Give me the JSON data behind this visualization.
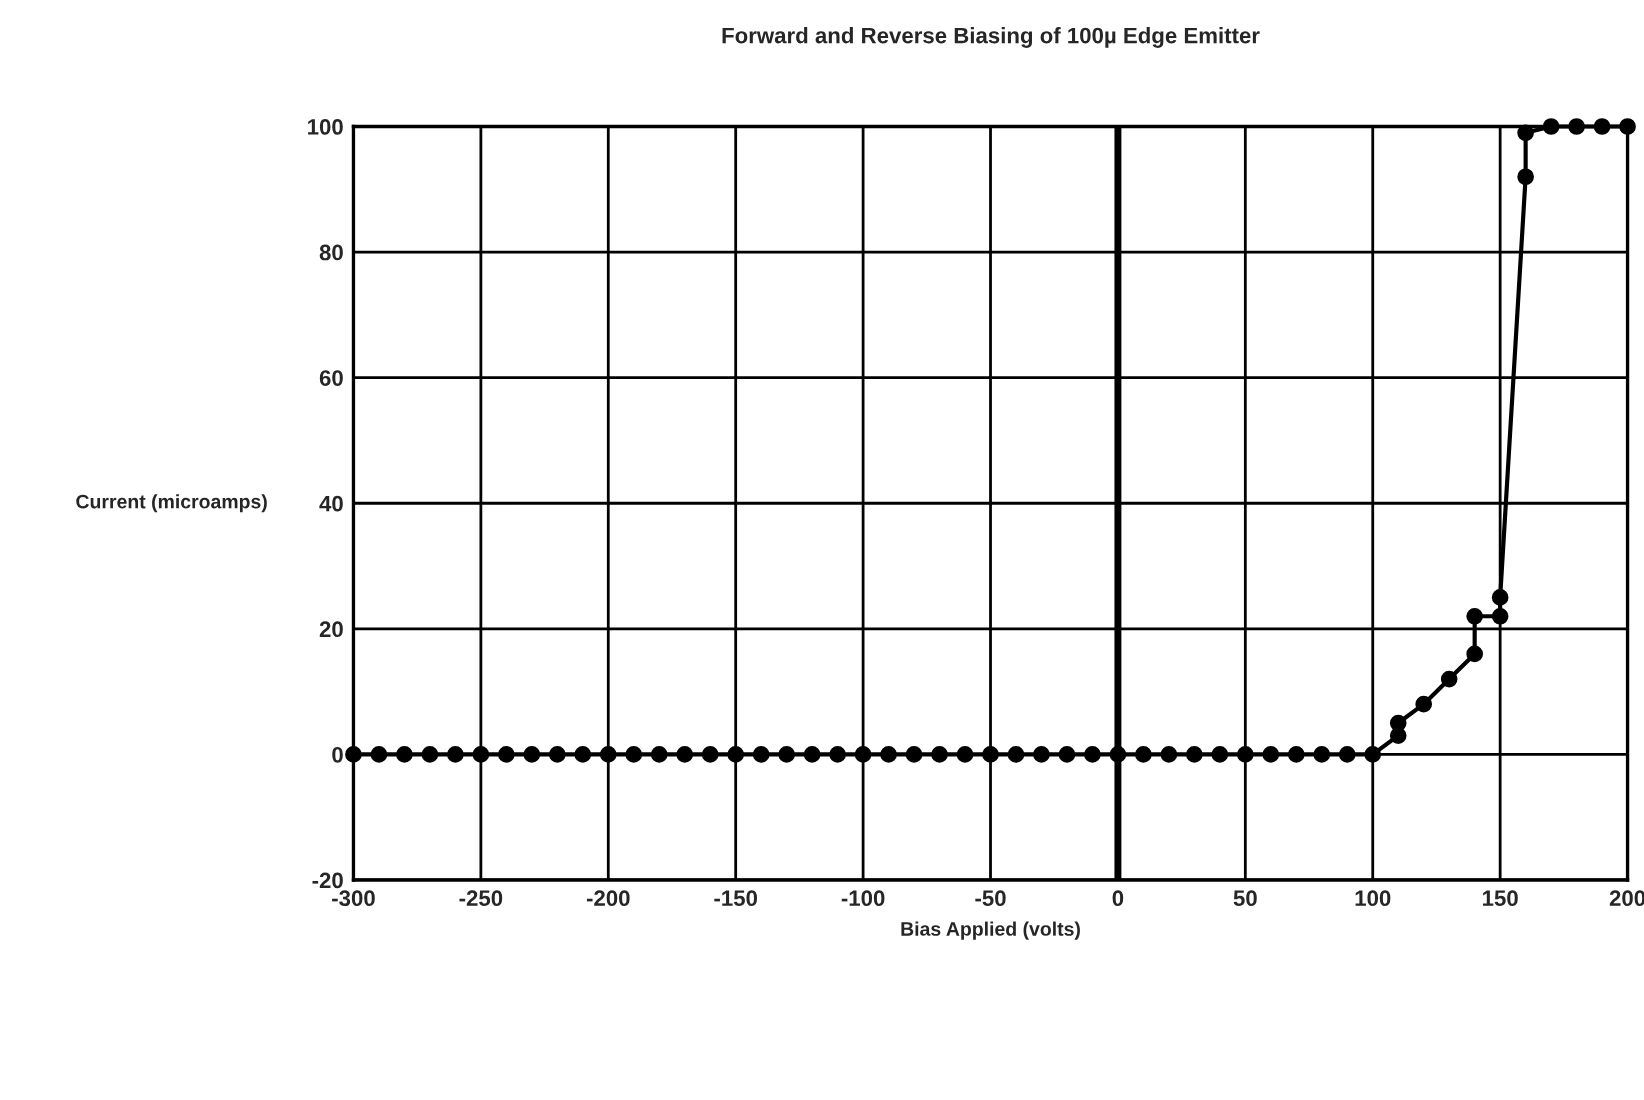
{
  "chart_data": {
    "type": "line",
    "title": "Forward and Reverse Biasing of 100µ Edge Emitter",
    "xlabel": "Bias Applied (volts)",
    "ylabel": "Current (microamps)",
    "series": [
      {
        "color": "#000000",
        "x": [
          -300,
          -290,
          -280,
          -270,
          -260,
          -250,
          -240,
          -230,
          -220,
          -210,
          -200,
          -190,
          -180,
          -170,
          -160,
          -150,
          -140,
          -130,
          -120,
          -110,
          -100,
          -90,
          -80,
          -70,
          -60,
          -50,
          -40,
          -30,
          -20,
          -10,
          0,
          10,
          20,
          30,
          40,
          50,
          60,
          70,
          80,
          90,
          100,
          110,
          110,
          120,
          130,
          140,
          140,
          150,
          150,
          160,
          160,
          170,
          180,
          190,
          200
        ],
        "values": [
          0,
          0,
          0,
          0,
          0,
          0,
          0,
          0,
          0,
          0,
          0,
          0,
          0,
          0,
          0,
          0,
          0,
          0,
          0,
          0,
          0,
          0,
          0,
          0,
          0,
          0,
          0,
          0,
          0,
          0,
          0,
          0,
          0,
          0,
          0,
          0,
          0,
          0,
          0,
          0,
          0,
          3,
          5,
          8,
          12,
          16,
          22,
          22,
          25,
          92,
          99,
          100,
          100,
          100,
          100
        ]
      }
    ],
    "xlim": [
      -300,
      200
    ],
    "xticks": [
      -300,
      -250,
      -200,
      -150,
      -100,
      -50,
      0,
      50,
      100,
      150,
      200
    ],
    "ylim": [
      -20,
      100
    ],
    "yticks": [
      -20,
      0,
      20,
      40,
      60,
      80,
      100
    ],
    "ref_lines": [
      {
        "axis": "x",
        "value": 0,
        "color": "#000000"
      }
    ],
    "grid": true,
    "marker": "circle",
    "line_style": "solid",
    "legend": false
  }
}
